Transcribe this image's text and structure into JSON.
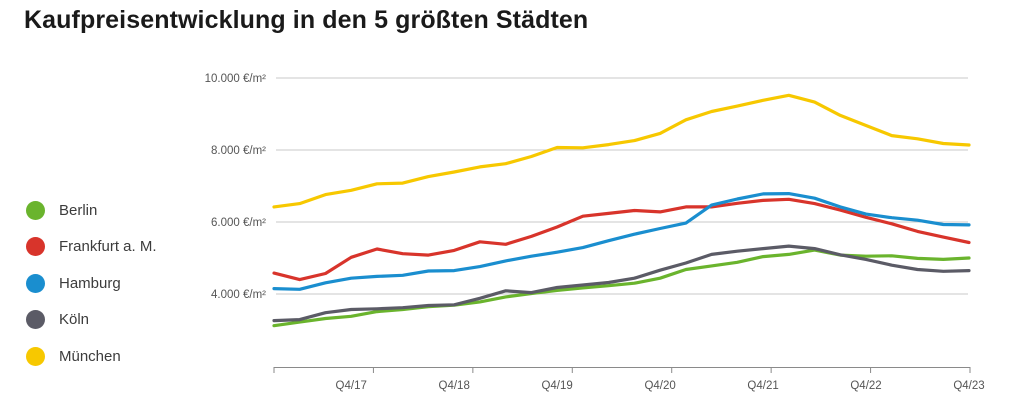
{
  "page_title": "Kaufpreisentwicklung in den 5 größten Städten",
  "chart_data": {
    "type": "line",
    "title": "Kaufpreisentwicklung in den 5 größten Städten",
    "xlabel": "",
    "ylabel": "",
    "ylim": [
      2000,
      10000
    ],
    "yticks": [
      {
        "value": 4000,
        "label": "4.000 €/m²"
      },
      {
        "value": 6000,
        "label": "6.000 €/m²"
      },
      {
        "value": 8000,
        "label": "8.000 €/m²"
      },
      {
        "value": 10000,
        "label": "10.000 €/m²"
      }
    ],
    "x": [
      "Q1/17",
      "Q2/17",
      "Q3/17",
      "Q4/17",
      "Q1/18",
      "Q2/18",
      "Q3/18",
      "Q4/18",
      "Q1/19",
      "Q2/19",
      "Q3/19",
      "Q4/19",
      "Q1/20",
      "Q2/20",
      "Q3/20",
      "Q4/20",
      "Q1/21",
      "Q2/21",
      "Q3/21",
      "Q4/21",
      "Q1/22",
      "Q2/22",
      "Q3/22",
      "Q4/22",
      "Q1/23",
      "Q2/23",
      "Q3/23",
      "Q4/23"
    ],
    "xticks": [
      {
        "index": 3,
        "label": "Q4/17"
      },
      {
        "index": 7,
        "label": "Q4/18"
      },
      {
        "index": 11,
        "label": "Q4/19"
      },
      {
        "index": 15,
        "label": "Q4/20"
      },
      {
        "index": 19,
        "label": "Q4/21"
      },
      {
        "index": 23,
        "label": "Q4/22"
      },
      {
        "index": 27,
        "label": "Q4/23"
      }
    ],
    "legend_position": "left",
    "grid": true,
    "series": [
      {
        "name": "Berlin",
        "color": "#6ab42d",
        "values": [
          3120,
          3220,
          3320,
          3380,
          3510,
          3570,
          3650,
          3690,
          3780,
          3920,
          4010,
          4100,
          4170,
          4230,
          4300,
          4440,
          4680,
          4780,
          4880,
          5040,
          5100,
          5220,
          5080,
          5050,
          5060,
          4990,
          4960,
          5000
        ]
      },
      {
        "name": "Frankfurt a. M.",
        "color": "#d8342b",
        "values": [
          4580,
          4400,
          4570,
          5020,
          5250,
          5120,
          5080,
          5210,
          5450,
          5380,
          5600,
          5860,
          6160,
          6240,
          6320,
          6280,
          6420,
          6420,
          6520,
          6600,
          6630,
          6510,
          6330,
          6130,
          5950,
          5740,
          5580,
          5430
        ]
      },
      {
        "name": "Hamburg",
        "color": "#1a8ecf",
        "values": [
          4150,
          4130,
          4310,
          4440,
          4490,
          4520,
          4640,
          4650,
          4760,
          4920,
          5050,
          5160,
          5290,
          5480,
          5660,
          5820,
          5970,
          6470,
          6640,
          6780,
          6790,
          6660,
          6420,
          6220,
          6120,
          6050,
          5930,
          5920
        ]
      },
      {
        "name": "Köln",
        "color": "#5b5b66",
        "values": [
          3260,
          3290,
          3480,
          3570,
          3590,
          3620,
          3680,
          3700,
          3880,
          4090,
          4040,
          4180,
          4250,
          4320,
          4440,
          4660,
          4860,
          5100,
          5190,
          5260,
          5330,
          5260,
          5090,
          4960,
          4800,
          4680,
          4630,
          4650
        ]
      },
      {
        "name": "München",
        "color": "#f7c800",
        "values": [
          6420,
          6510,
          6760,
          6880,
          7060,
          7080,
          7260,
          7390,
          7530,
          7620,
          7820,
          8070,
          8060,
          8150,
          8260,
          8460,
          8840,
          9070,
          9220,
          9380,
          9520,
          9330,
          8960,
          8680,
          8400,
          8310,
          8180,
          8140
        ]
      }
    ]
  }
}
